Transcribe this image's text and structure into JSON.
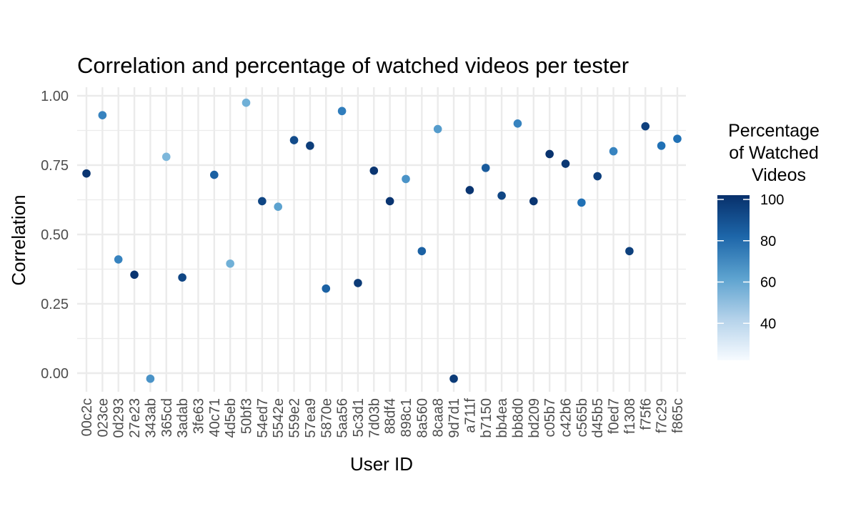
{
  "chart_data": {
    "type": "scatter",
    "title": "Correlation and percentage of watched videos per tester",
    "xlabel": "User ID",
    "ylabel": "Correlation",
    "ylim": [
      -0.07,
      1.03
    ],
    "yticks": [
      0.0,
      0.25,
      0.5,
      0.75,
      1.0
    ],
    "ytick_labels": [
      "0.00",
      "0.25",
      "0.50",
      "0.75",
      "1.00"
    ],
    "grid": true,
    "legend": {
      "title_lines": [
        "Percentage",
        "of Watched",
        "Videos"
      ],
      "placement": "right",
      "range": [
        20,
        100
      ],
      "ticks": [
        40,
        60,
        80,
        100
      ],
      "tick_labels": [
        "40",
        "60",
        "80",
        "100"
      ],
      "color_low": "#f7fbff",
      "color_high": "#08306b"
    },
    "categories": [
      "00c2c",
      "023ce",
      "0d293",
      "27e23",
      "343ab",
      "365cd",
      "3adab",
      "3fe63",
      "40c71",
      "4d5eb",
      "50bf3",
      "54ed7",
      "5542e",
      "559e2",
      "57ea9",
      "5870e",
      "5aa56",
      "5c3d1",
      "7d03b",
      "88df4",
      "898c1",
      "8a560",
      "8caa8",
      "9d7d1",
      "a711f",
      "b7150",
      "bb4ea",
      "bb8d0",
      "bd209",
      "c05b7",
      "c42b6",
      "c565b",
      "d45b5",
      "f0ed7",
      "f1308",
      "f75f6",
      "f7c29",
      "f865c"
    ],
    "points": [
      {
        "x": "00c2c",
        "y": 0.72,
        "pct": 98
      },
      {
        "x": "023ce",
        "y": 0.93,
        "pct": 70
      },
      {
        "x": "0d293",
        "y": 0.41,
        "pct": 70
      },
      {
        "x": "27e23",
        "y": 0.355,
        "pct": 98
      },
      {
        "x": "343ab",
        "y": -0.02,
        "pct": 65
      },
      {
        "x": "365cd",
        "y": 0.78,
        "pct": 52
      },
      {
        "x": "3adab",
        "y": 0.345,
        "pct": 92
      },
      {
        "x": "40c71",
        "y": 0.715,
        "pct": 82
      },
      {
        "x": "4d5eb",
        "y": 0.395,
        "pct": 55
      },
      {
        "x": "50bf3",
        "y": 0.975,
        "pct": 55
      },
      {
        "x": "54ed7",
        "y": 0.62,
        "pct": 92
      },
      {
        "x": "5542e",
        "y": 0.6,
        "pct": 60
      },
      {
        "x": "559e2",
        "y": 0.84,
        "pct": 90
      },
      {
        "x": "57ea9",
        "y": 0.82,
        "pct": 95
      },
      {
        "x": "5870e",
        "y": 0.305,
        "pct": 82
      },
      {
        "x": "5aa56",
        "y": 0.945,
        "pct": 72
      },
      {
        "x": "5c3d1",
        "y": 0.325,
        "pct": 96
      },
      {
        "x": "7d03b",
        "y": 0.73,
        "pct": 98
      },
      {
        "x": "88df4",
        "y": 0.62,
        "pct": 98
      },
      {
        "x": "898c1",
        "y": 0.7,
        "pct": 65
      },
      {
        "x": "8a560",
        "y": 0.44,
        "pct": 82
      },
      {
        "x": "8caa8",
        "y": 0.88,
        "pct": 62
      },
      {
        "x": "9d7d1",
        "y": -0.02,
        "pct": 96
      },
      {
        "x": "a711f",
        "y": 0.66,
        "pct": 98
      },
      {
        "x": "b7150",
        "y": 0.74,
        "pct": 84
      },
      {
        "x": "bb4ea",
        "y": 0.64,
        "pct": 92
      },
      {
        "x": "bb8d0",
        "y": 0.9,
        "pct": 70
      },
      {
        "x": "bd209",
        "y": 0.62,
        "pct": 98
      },
      {
        "x": "c05b7",
        "y": 0.79,
        "pct": 99
      },
      {
        "x": "c42b6",
        "y": 0.755,
        "pct": 97
      },
      {
        "x": "c565b",
        "y": 0.615,
        "pct": 76
      },
      {
        "x": "d45b5",
        "y": 0.71,
        "pct": 94
      },
      {
        "x": "f0ed7",
        "y": 0.8,
        "pct": 70
      },
      {
        "x": "f1308",
        "y": 0.44,
        "pct": 94
      },
      {
        "x": "f75f6",
        "y": 0.89,
        "pct": 94
      },
      {
        "x": "f7c29",
        "y": 0.82,
        "pct": 76
      },
      {
        "x": "f865c",
        "y": 0.845,
        "pct": 76
      }
    ]
  }
}
